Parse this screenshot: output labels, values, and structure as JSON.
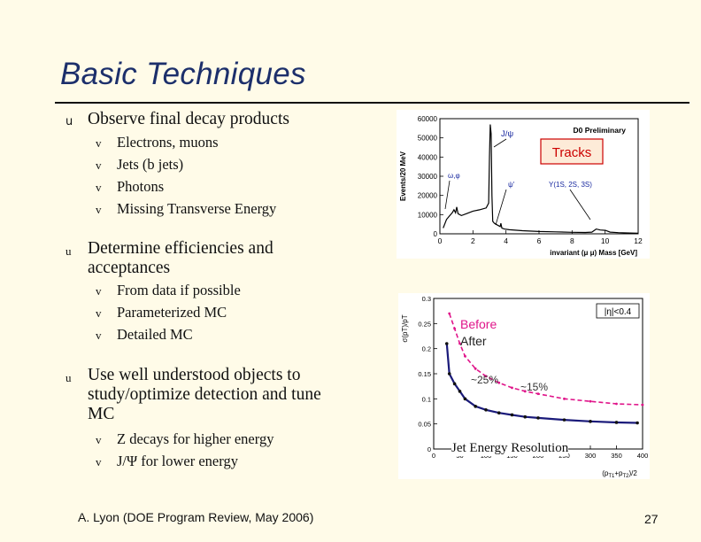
{
  "slide": {
    "title": "Basic Techniques",
    "bullet_glyph": "u",
    "sub_glyph": "v",
    "sections": [
      {
        "text": "Observe final decay products",
        "items": [
          "Electrons, muons",
          "Jets (b jets)",
          "Photons",
          "Missing Transverse Energy"
        ]
      },
      {
        "text": "Determine efficiencies and acceptances",
        "items": [
          "From data if possible",
          "Parameterized MC",
          "Detailed MC"
        ]
      },
      {
        "text": "Use well understood objects to study/optimize detection and tune MC",
        "items": [
          "Z decays for higher energy",
          "J/Ψ for lower energy"
        ]
      }
    ],
    "footer": "A. Lyon (DOE Program Review, May 2006)",
    "page_number": "27"
  },
  "chart_data": [
    {
      "type": "line",
      "preliminary_label": "D0 Preliminary",
      "box_label": "Tracks",
      "ylabel": "Events/20 MeV",
      "xlabel": "invariant (μ μ) Mass [GeV]",
      "xlim": [
        0,
        12
      ],
      "ylim": [
        0,
        60000
      ],
      "x_ticks": [
        "0",
        "2",
        "4",
        "6",
        "8",
        "10",
        "12"
      ],
      "y_ticks": [
        "0",
        "10000",
        "20000",
        "30000",
        "40000",
        "50000",
        "60000"
      ],
      "peak_labels": [
        "J/ψ",
        "ω,φ",
        "ψ'",
        "Υ(1S, 2S, 3S)"
      ],
      "series": [
        {
          "x": [
            0.2,
            0.4,
            0.6,
            0.75,
            0.85,
            0.95,
            1.02,
            1.1,
            1.3,
            1.6,
            2.0,
            2.4,
            2.8,
            2.95,
            3.0,
            3.05,
            3.1,
            3.15,
            3.2,
            3.3,
            3.5,
            3.65,
            3.69,
            3.75,
            3.9,
            4.2,
            5,
            6,
            7,
            8,
            8.8,
            9.2,
            9.46,
            9.7,
            10.02,
            10.3,
            10.8,
            11.5,
            12
          ],
          "y": [
            3000,
            7500,
            9500,
            11000,
            12500,
            11000,
            14000,
            10500,
            9500,
            10500,
            11800,
            12500,
            13500,
            16000,
            40000,
            57000,
            52000,
            20000,
            6500,
            5500,
            4500,
            3800,
            5500,
            3000,
            2500,
            2100,
            1600,
            1200,
            1000,
            800,
            700,
            900,
            2500,
            2000,
            1800,
            900,
            600,
            400,
            300
          ]
        }
      ]
    },
    {
      "type": "scatter",
      "ylabel": "σ(pT)/pT",
      "eta_label": "|η|<0.4",
      "legend": [
        "Before",
        "After"
      ],
      "annotations": [
        "~25%",
        "~15%"
      ],
      "caption": "Jet Energy Resolution",
      "xlim": [
        0,
        400
      ],
      "ylim": [
        0,
        0.3
      ],
      "x_ticks": [
        "0",
        "50",
        "100",
        "150",
        "200",
        "250",
        "300",
        "350",
        "400"
      ],
      "y_ticks": [
        "0",
        "0.05",
        "0.1",
        "0.15",
        "0.2",
        "0.25",
        "0.3"
      ],
      "series": [
        {
          "name": "Before",
          "color": "#e0158a",
          "x": [
            30,
            40,
            50,
            60,
            80,
            100,
            125,
            150,
            175,
            200,
            250,
            300,
            350,
            400
          ],
          "y": [
            0.27,
            0.24,
            0.21,
            0.185,
            0.16,
            0.145,
            0.132,
            0.122,
            0.115,
            0.11,
            0.1,
            0.095,
            0.09,
            0.088
          ]
        },
        {
          "name": "After",
          "color": "#1a1a7a",
          "x": [
            25,
            30,
            40,
            50,
            60,
            80,
            100,
            125,
            150,
            175,
            200,
            250,
            300,
            350,
            390
          ],
          "y": [
            0.21,
            0.15,
            0.13,
            0.115,
            0.1,
            0.085,
            0.078,
            0.072,
            0.068,
            0.064,
            0.062,
            0.058,
            0.055,
            0.053,
            0.052
          ]
        }
      ]
    }
  ]
}
